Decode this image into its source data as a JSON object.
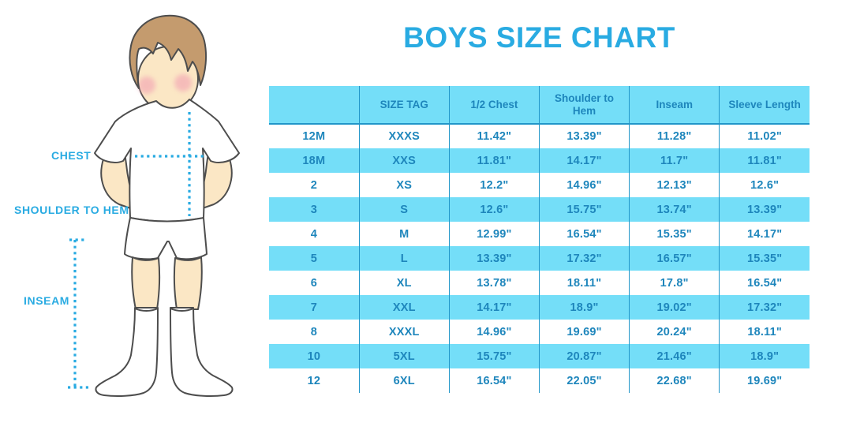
{
  "title": "BOYS SIZE CHART",
  "colors": {
    "accent": "#29ABE2",
    "cell_text": "#1E86BC",
    "stripe_bg": "#74DEF8",
    "grid_line": "#2196C9",
    "skin": "#FBE7C5",
    "hair": "#C49B6E",
    "outline": "#4d4d4d",
    "cheek": "#F2A0B2"
  },
  "figure": {
    "labels": {
      "chest": "CHEST",
      "shoulder_to_hem": "SHOULDER TO HEM",
      "inseam": "INSEAM"
    }
  },
  "table": {
    "columns": [
      "",
      "SIZE TAG",
      "1/2 Chest",
      "Shoulder to Hem",
      "Inseam",
      "Sleeve Length"
    ],
    "rows": [
      [
        "12M",
        "XXXS",
        "11.42\"",
        "13.39\"",
        "11.28\"",
        "11.02\""
      ],
      [
        "18M",
        "XXS",
        "11.81\"",
        "14.17\"",
        "11.7\"",
        "11.81\""
      ],
      [
        "2",
        "XS",
        "12.2\"",
        "14.96\"",
        "12.13\"",
        "12.6\""
      ],
      [
        "3",
        "S",
        "12.6\"",
        "15.75\"",
        "13.74\"",
        "13.39\""
      ],
      [
        "4",
        "M",
        "12.99\"",
        "16.54\"",
        "15.35\"",
        "14.17\""
      ],
      [
        "5",
        "L",
        "13.39\"",
        "17.32\"",
        "16.57\"",
        "15.35\""
      ],
      [
        "6",
        "XL",
        "13.78\"",
        "18.11\"",
        "17.8\"",
        "16.54\""
      ],
      [
        "7",
        "XXL",
        "14.17\"",
        "18.9\"",
        "19.02\"",
        "17.32\""
      ],
      [
        "8",
        "XXXL",
        "14.96\"",
        "19.69\"",
        "20.24\"",
        "18.11\""
      ],
      [
        "10",
        "5XL",
        "15.75\"",
        "20.87\"",
        "21.46\"",
        "18.9\""
      ],
      [
        "12",
        "6XL",
        "16.54\"",
        "22.05\"",
        "22.68\"",
        "19.69\""
      ]
    ]
  }
}
